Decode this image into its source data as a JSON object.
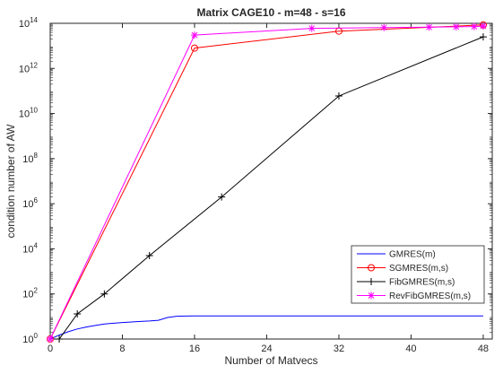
{
  "chart_data": {
    "type": "line",
    "title": "Matrix CAGE10 - m=48 - s=16",
    "xlabel": "Number of Matvecs",
    "ylabel": "condition number of AW",
    "xlim": [
      0,
      49
    ],
    "ylim": [
      1,
      100000000000000
    ],
    "yscale": "log",
    "grid": false,
    "legend_position": "bottom-right",
    "x_ticks": [
      0,
      8,
      16,
      24,
      32,
      40,
      48
    ],
    "x_tick_labels": [
      "0",
      "8",
      "16",
      "24",
      "32",
      "40",
      "48"
    ],
    "y_ticks": [
      1,
      100,
      10000,
      1000000,
      100000000,
      10000000000,
      1000000000000,
      100000000000000
    ],
    "y_tick_exponents": [
      "0",
      "2",
      "4",
      "6",
      "8",
      "10",
      "12",
      "14"
    ],
    "y_tick_base": "10",
    "series": [
      {
        "name": "GMRES(m)",
        "color": "#0000ff",
        "marker": "none",
        "x": [
          0,
          1,
          2,
          3,
          4,
          5,
          6,
          7,
          8,
          9,
          10,
          11,
          12,
          13,
          14,
          15,
          16,
          20,
          24,
          28,
          32,
          36,
          40,
          44,
          48
        ],
        "y": [
          1,
          1.5,
          2.1,
          2.8,
          3.4,
          4.0,
          4.6,
          5.0,
          5.4,
          5.7,
          6.0,
          6.3,
          6.8,
          9.0,
          10.2,
          10.4,
          10.5,
          10.5,
          10.5,
          10.5,
          10.5,
          10.5,
          10.5,
          10.5,
          10.5
        ]
      },
      {
        "name": "SGMRES(m,s)",
        "color": "#ff0000",
        "marker": "o",
        "x": [
          0,
          16,
          32,
          48
        ],
        "y": [
          1,
          8000000000000,
          45000000000000,
          85000000000000
        ]
      },
      {
        "name": "FibGMRES(m,s)",
        "color": "#000000",
        "marker": "+",
        "x": [
          0,
          1,
          3,
          6,
          11,
          19,
          32,
          48
        ],
        "y": [
          1,
          1,
          13,
          100,
          5000,
          2000000,
          60000000000,
          25000000000000
        ]
      },
      {
        "name": "RevFibGMRES(m,s)",
        "color": "#ff00ff",
        "marker": "*",
        "x": [
          0,
          16,
          29,
          37,
          42,
          45,
          47,
          48
        ],
        "y": [
          1,
          30000000000000,
          60000000000000,
          65000000000000,
          68000000000000,
          70000000000000,
          72000000000000,
          75000000000000
        ]
      }
    ]
  }
}
